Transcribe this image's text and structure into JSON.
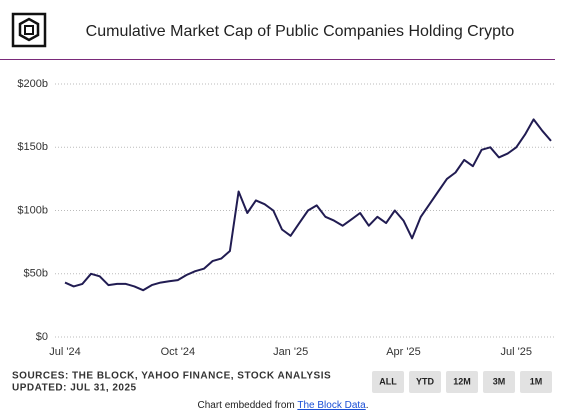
{
  "chart_data": {
    "type": "line",
    "title": "Cumulative Market Cap of Public Companies Holding Crypto",
    "categories": [
      "Jul '24",
      null,
      null,
      null,
      null,
      null,
      null,
      null,
      null,
      null,
      null,
      null,
      null,
      "Oct '24",
      null,
      null,
      null,
      null,
      null,
      null,
      null,
      null,
      null,
      null,
      null,
      null,
      "Jan '25",
      null,
      null,
      null,
      null,
      null,
      null,
      null,
      null,
      null,
      null,
      null,
      null,
      "Apr '25",
      null,
      null,
      null,
      null,
      null,
      null,
      null,
      null,
      null,
      null,
      null,
      null,
      "Jul '25",
      null,
      null,
      null,
      null
    ],
    "series": [
      {
        "color": "#211c52",
        "values": [
          43,
          40,
          42,
          50,
          48,
          41,
          42,
          42,
          40,
          37,
          41,
          43,
          44,
          45,
          49,
          52,
          54,
          60,
          62,
          68,
          115,
          98,
          108,
          105,
          100,
          85,
          80,
          90,
          100,
          104,
          95,
          92,
          88,
          93,
          98,
          88,
          95,
          90,
          100,
          92,
          78,
          95,
          105,
          115,
          125,
          130,
          140,
          135,
          148,
          150,
          142,
          145,
          150,
          160,
          172,
          163,
          155
        ]
      }
    ],
    "ylim": [
      0,
      200
    ],
    "yticks": [
      {
        "value": 0,
        "label": "$0"
      },
      {
        "value": 50,
        "label": "$50b"
      },
      {
        "value": 100,
        "label": "$100b"
      },
      {
        "value": 150,
        "label": "$150b"
      },
      {
        "value": 200,
        "label": "$200b"
      }
    ],
    "grid": true
  },
  "sources": "SOURCES: THE BLOCK, YAHOO FINANCE, STOCK ANALYSIS",
  "updated": "UPDATED: JUL 31, 2025",
  "buttons": [
    "ALL",
    "YTD",
    "12M",
    "3M",
    "1M"
  ],
  "footer": {
    "prefix": "Chart embedded from",
    "link": "The Block Data",
    "suffix": "."
  }
}
